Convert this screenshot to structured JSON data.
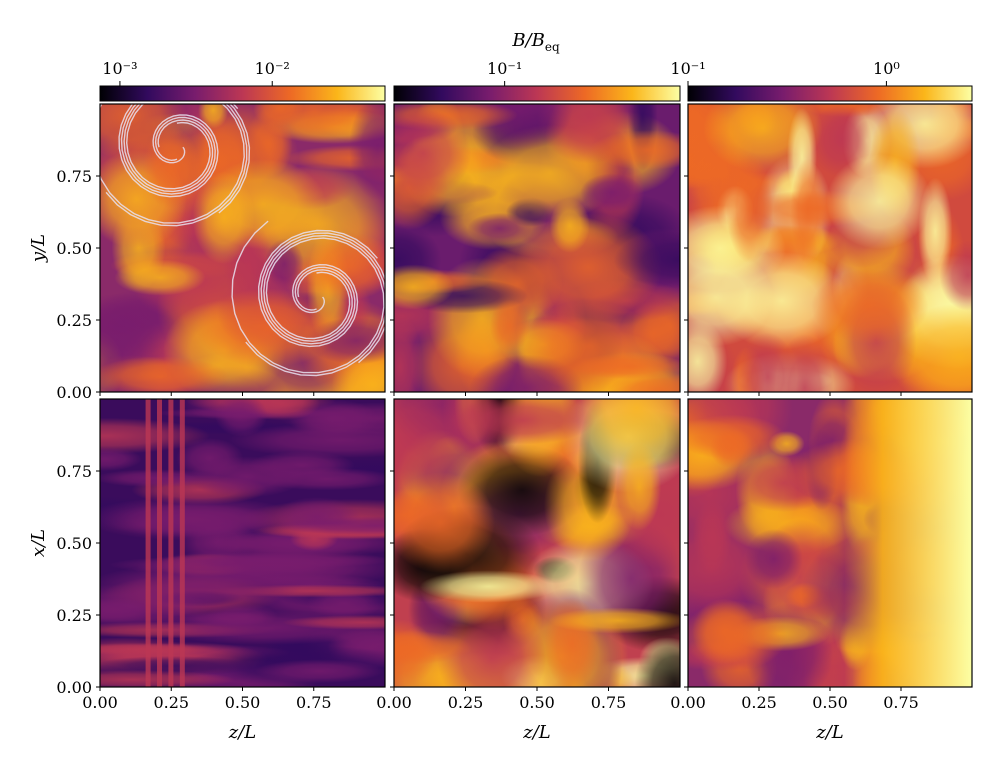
{
  "chart_data": {
    "type": "heatmap",
    "colormap": [
      "#000004",
      "#320a5e",
      "#781c6d",
      "#bc3754",
      "#ed6925",
      "#fbb61a",
      "#fcffa4"
    ],
    "colorbar_label": {
      "main": "B/B",
      "sub": "eq"
    },
    "colorbars": [
      {
        "log": true,
        "clim": [
          0.00074,
          0.055
        ],
        "ticks": [
          {
            "value": 0.001,
            "label": "10⁻³"
          },
          {
            "value": 0.01,
            "label": "10⁻²"
          }
        ]
      },
      {
        "log": true,
        "clim": [
          0.05,
          0.3
        ],
        "ticks": [
          {
            "value": 0.1,
            "label": "10⁻¹"
          }
        ]
      },
      {
        "log": true,
        "clim": [
          0.1,
          2.7
        ],
        "ticks": [
          {
            "value": 0.1,
            "label": "10⁻¹"
          },
          {
            "value": 1,
            "label": "10⁰"
          }
        ]
      }
    ],
    "ylabels": [
      "y/L",
      "x/L"
    ],
    "xlabels": [
      "z/L",
      "z/L",
      "z/L"
    ],
    "xlim": [
      0,
      1
    ],
    "ylim": [
      0,
      1
    ],
    "xticks": [
      {
        "value": 0,
        "label": "0.00"
      },
      {
        "value": 0.25,
        "label": "0.25"
      },
      {
        "value": 0.5,
        "label": "0.50"
      },
      {
        "value": 0.75,
        "label": "0.75"
      }
    ],
    "yticks": [
      {
        "value": 0,
        "label": "0.00"
      },
      {
        "value": 0.25,
        "label": "0.25"
      },
      {
        "value": 0.5,
        "label": "0.50"
      },
      {
        "value": 0.75,
        "label": "0.75"
      }
    ]
  }
}
